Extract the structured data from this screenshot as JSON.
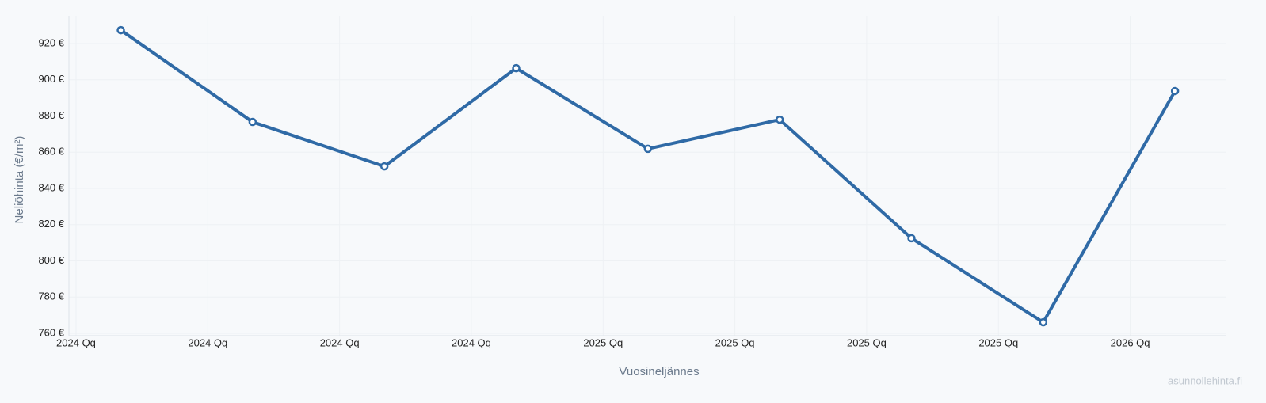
{
  "chart_data": {
    "type": "line",
    "x_label": "Vuosineljännes",
    "y_label": "Neliöhinta (€/m²)",
    "watermark": "asunnollehinta.fi",
    "x": [
      0.34,
      1.34,
      2.34,
      3.34,
      4.34,
      5.34,
      6.34,
      7.34,
      8.34
    ],
    "series": [
      {
        "name": "Neliöhinta",
        "color": "#2f6aa6",
        "values": [
          927.4,
          876.7,
          852.2,
          906.4,
          861.9,
          878.0,
          812.5,
          766.1,
          893.8
        ]
      }
    ],
    "xlim": [
      -0.054,
      8.73
    ],
    "xticks": [
      {
        "value": 0,
        "label": "2024 Qq"
      },
      {
        "value": 1,
        "label": "2024 Qq"
      },
      {
        "value": 2,
        "label": "2024 Qq"
      },
      {
        "value": 3,
        "label": "2024 Qq"
      },
      {
        "value": 4,
        "label": "2025 Qq"
      },
      {
        "value": 5,
        "label": "2025 Qq"
      },
      {
        "value": 6,
        "label": "2025 Qq"
      },
      {
        "value": 7,
        "label": "2025 Qq"
      },
      {
        "value": 8,
        "label": "2026 Qq"
      }
    ],
    "ylim": [
      758.7,
      935.3
    ],
    "yticks": [
      {
        "value": 760,
        "label": "760 €"
      },
      {
        "value": 780,
        "label": "780 €"
      },
      {
        "value": 800,
        "label": "800 €"
      },
      {
        "value": 820,
        "label": "820 €"
      },
      {
        "value": 840,
        "label": "840 €"
      },
      {
        "value": 860,
        "label": "860 €"
      },
      {
        "value": 880,
        "label": "880 €"
      },
      {
        "value": 900,
        "label": "900 €"
      },
      {
        "value": 920,
        "label": "920 €"
      }
    ],
    "grid": true
  }
}
